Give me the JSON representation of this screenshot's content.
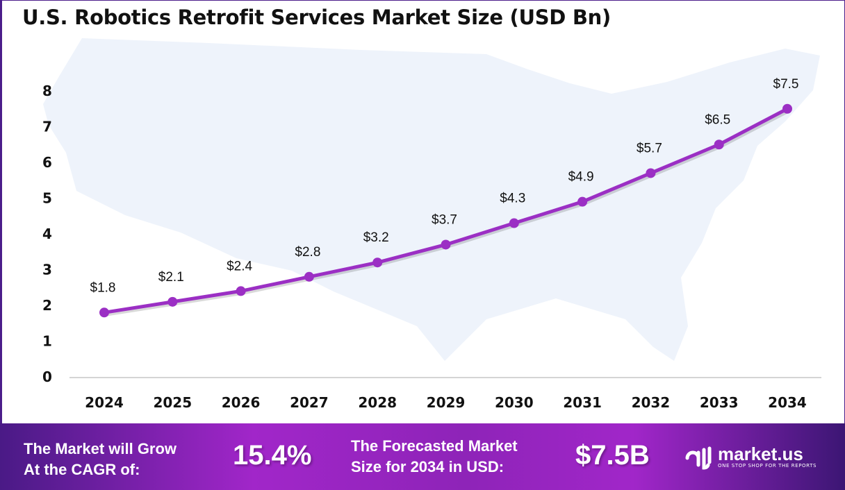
{
  "chart_data": {
    "type": "line",
    "title": "U.S. Robotics Retrofit Services Market Size (USD Bn)",
    "categories": [
      "2024",
      "2025",
      "2026",
      "2027",
      "2028",
      "2029",
      "2030",
      "2031",
      "2032",
      "2033",
      "2034"
    ],
    "values": [
      1.8,
      2.1,
      2.4,
      2.8,
      3.2,
      3.7,
      4.3,
      4.9,
      5.7,
      6.5,
      7.5
    ],
    "data_labels": [
      "$1.8",
      "$2.1",
      "$2.4",
      "$2.8",
      "$3.2",
      "$3.7",
      "$4.3",
      "$4.9",
      "$5.7",
      "$6.5",
      "$7.5"
    ],
    "ylim": [
      0,
      8
    ],
    "yticks": [
      "0",
      "1",
      "2",
      "3",
      "4",
      "5",
      "6",
      "7",
      "8"
    ],
    "grid": false,
    "line_color": "#9b2fc4",
    "background": "US map silhouette"
  },
  "footer": {
    "cagr_label_line1": "The Market will Grow",
    "cagr_label_line2": "At the CAGR of:",
    "cagr_value": "15.4%",
    "forecast_label_line1": "The Forecasted Market",
    "forecast_label_line2": "Size for 2034 in USD:",
    "forecast_value": "$7.5B",
    "logo_name": "market.us",
    "logo_tagline": "ONE STOP SHOP FOR THE REPORTS"
  }
}
